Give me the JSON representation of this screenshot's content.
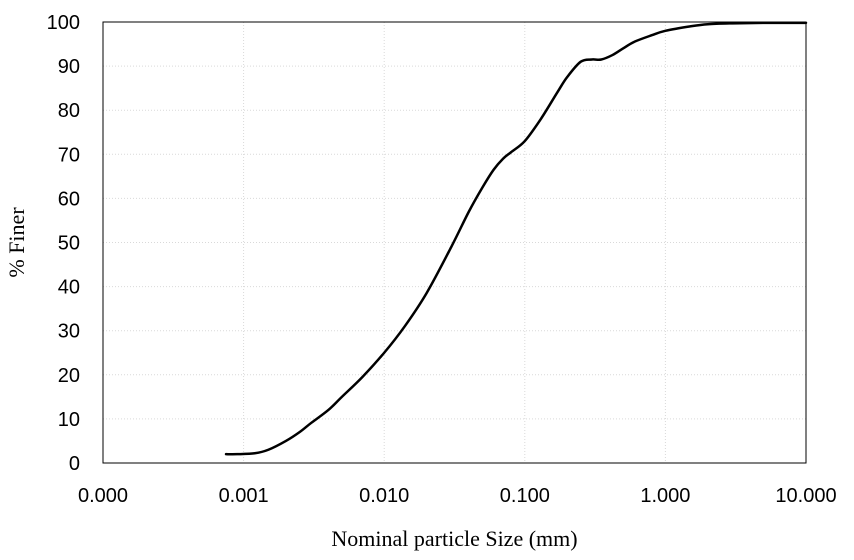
{
  "chart_data": {
    "type": "line",
    "xlabel": "Nominal particle Size (mm)",
    "ylabel": "% Finer",
    "xscale": "log",
    "xlim": [
      0.0001,
      10
    ],
    "ylim": [
      0,
      100
    ],
    "x_tick_labels": [
      "0.000",
      "0.001",
      "0.010",
      "0.100",
      "1.000",
      "10.000"
    ],
    "x_tick_values": [
      0.0001,
      0.001,
      0.01,
      0.1,
      1,
      10
    ],
    "y_ticks": [
      0,
      10,
      20,
      30,
      40,
      50,
      60,
      70,
      80,
      90,
      100
    ],
    "grid": true,
    "legend": "none",
    "series": [
      {
        "color": "#000000",
        "x": [
          0.00075,
          0.0009,
          0.0012,
          0.0015,
          0.002,
          0.0025,
          0.003,
          0.004,
          0.005,
          0.007,
          0.01,
          0.014,
          0.02,
          0.03,
          0.04,
          0.05,
          0.06,
          0.07,
          0.08,
          0.1,
          0.13,
          0.17,
          0.2,
          0.25,
          0.3,
          0.35,
          0.42,
          0.5,
          0.6,
          0.8,
          1.0,
          1.5,
          2.0,
          3.0,
          5.0,
          10.0
        ],
        "y": [
          2,
          2,
          2.2,
          3,
          5,
          7,
          9,
          12,
          15,
          19.5,
          25,
          31,
          38.5,
          49,
          57,
          62.5,
          66.5,
          69,
          70.5,
          73,
          78,
          84,
          87.5,
          91,
          91.5,
          91.5,
          92.5,
          94,
          95.5,
          97,
          98,
          99,
          99.5,
          99.7,
          99.8,
          99.8
        ]
      }
    ]
  }
}
